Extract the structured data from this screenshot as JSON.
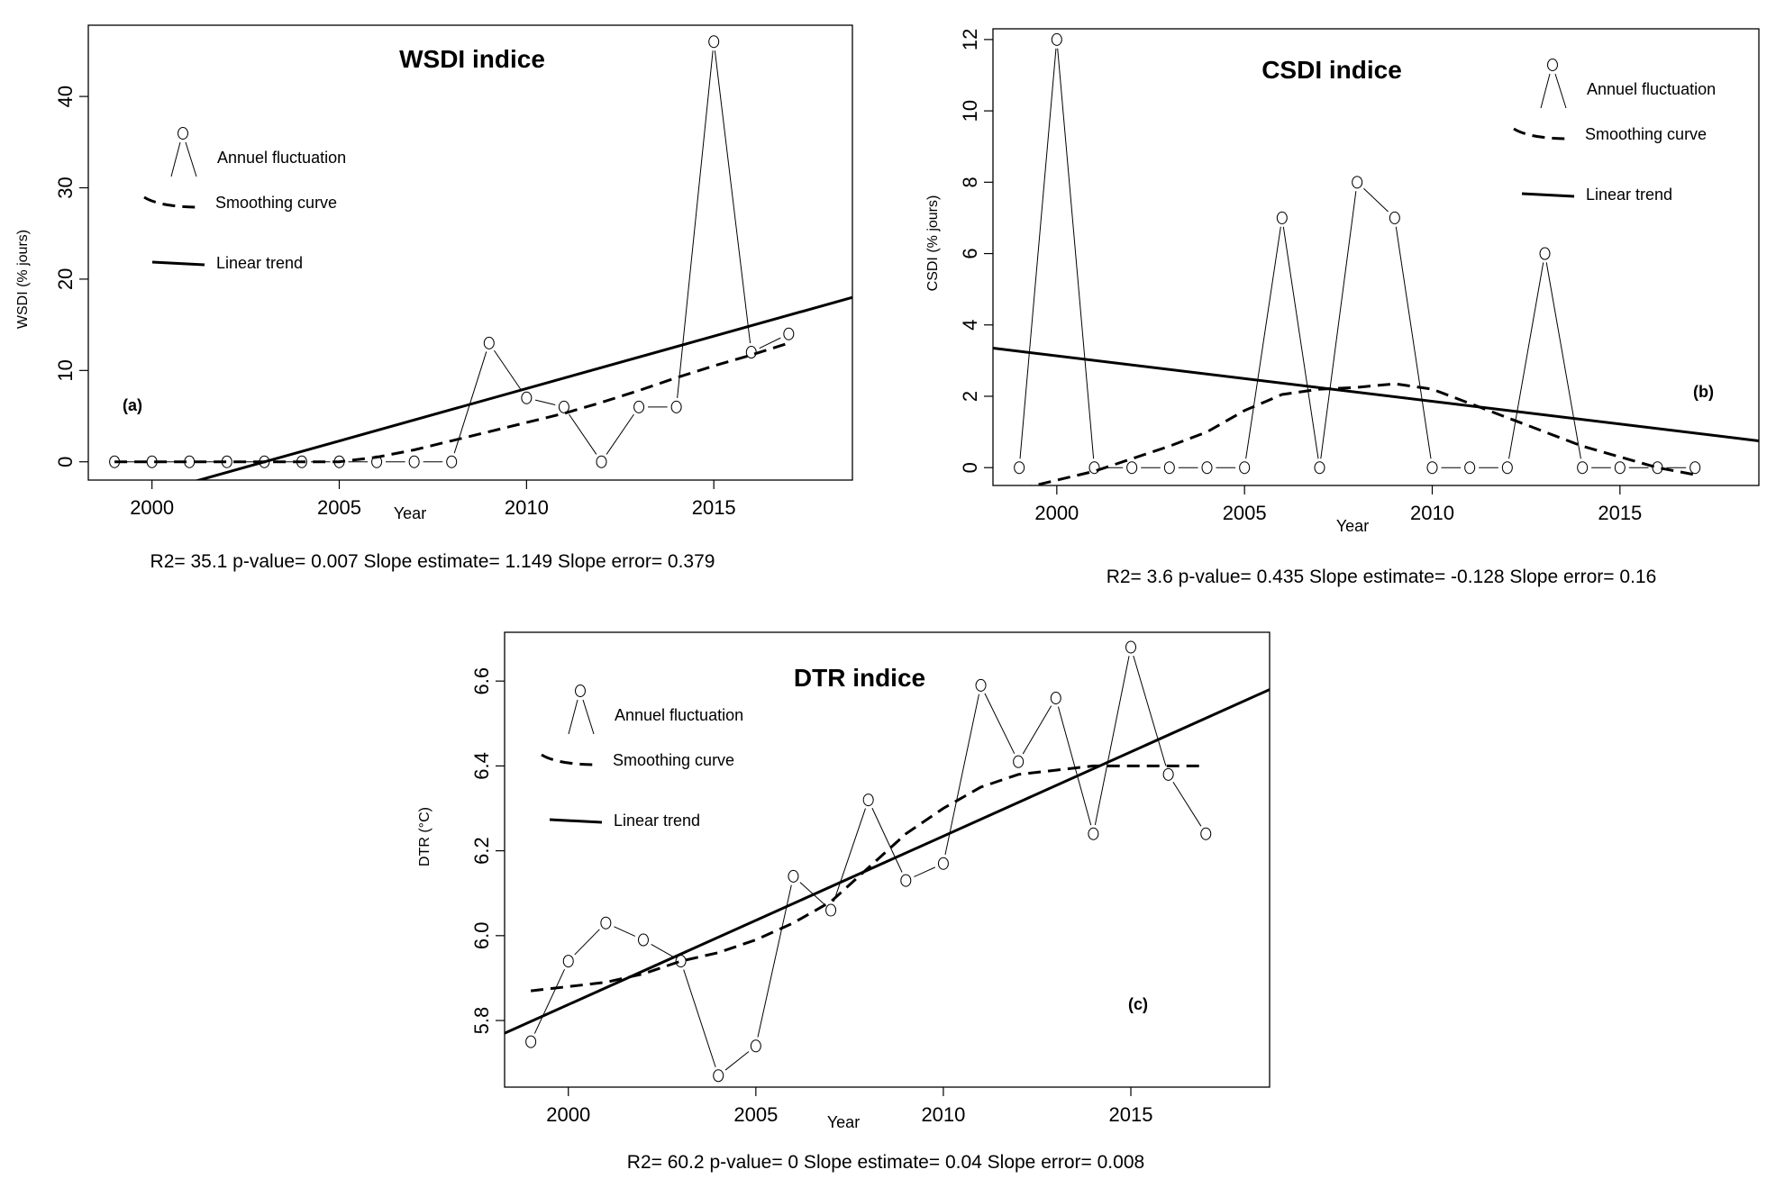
{
  "chart_data": [
    {
      "id": "a",
      "type": "line",
      "title": "WSDI indice",
      "panel_label": "(a)",
      "xlabel": "Year",
      "ylabel": "WSDI (% jours)",
      "xlim": [
        1998.3,
        2018.7
      ],
      "ylim": [
        -2,
        47.8
      ],
      "xticks": [
        2000,
        2005,
        2010,
        2015
      ],
      "yticks": [
        0,
        10,
        20,
        30,
        40
      ],
      "x": [
        1999,
        2000,
        2001,
        2002,
        2003,
        2004,
        2005,
        2006,
        2007,
        2008,
        2009,
        2010,
        2011,
        2012,
        2013,
        2014,
        2015,
        2016,
        2017
      ],
      "series": [
        {
          "name": "Annuel fluctuation",
          "values": [
            0,
            0,
            0,
            0,
            0,
            0,
            0,
            0,
            0,
            0,
            13,
            7,
            6,
            0,
            6,
            6,
            46,
            12,
            14
          ]
        },
        {
          "name": "Smoothing curve",
          "values": [
            0,
            0,
            0,
            0,
            0,
            0,
            0,
            0.5,
            1.3,
            2.3,
            3.3,
            4.3,
            5.3,
            6.5,
            7.8,
            9.2,
            10.5,
            11.7,
            13
          ]
        },
        {
          "name": "Linear trend",
          "endpoints": [
            [
              1998.3,
              -5.4
            ],
            [
              2018.7,
              18.0
            ]
          ]
        }
      ],
      "stats": "R2= 35.1  p-value= 0.007  Slope estimate= 1.149  Slope error= 0.379"
    },
    {
      "id": "b",
      "type": "line",
      "title": "CSDI indice",
      "panel_label": "(b)",
      "xlabel": "Year",
      "ylabel": "CSDI (% jours)",
      "xlim": [
        1998.3,
        2018.7
      ],
      "ylim": [
        -0.5,
        12.3
      ],
      "xticks": [
        2000,
        2005,
        2010,
        2015
      ],
      "yticks": [
        0,
        2,
        4,
        6,
        8,
        10,
        12
      ],
      "x": [
        1999,
        2000,
        2001,
        2002,
        2003,
        2004,
        2005,
        2006,
        2007,
        2008,
        2009,
        2010,
        2011,
        2012,
        2013,
        2014,
        2015,
        2016,
        2017
      ],
      "series": [
        {
          "name": "Annuel fluctuation",
          "values": [
            0,
            12,
            0,
            0,
            0,
            0,
            0,
            7,
            0,
            8,
            7,
            0,
            0,
            0,
            6,
            0,
            0,
            0,
            0
          ]
        },
        {
          "name": "Smoothing curve",
          "values": [
            -0.6,
            -0.35,
            -0.1,
            0.25,
            0.6,
            1.0,
            1.6,
            2.05,
            2.2,
            2.25,
            2.35,
            2.2,
            1.8,
            1.4,
            1.0,
            0.6,
            0.3,
            0.0,
            -0.2
          ]
        },
        {
          "name": "Linear trend",
          "endpoints": [
            [
              1998.3,
              3.35
            ],
            [
              2018.7,
              0.75
            ]
          ]
        }
      ],
      "stats": "R2= 3.6  p-value= 0.435  Slope estimate= -0.128  Slope error= 0.16"
    },
    {
      "id": "c",
      "type": "line",
      "title": "DTR indice",
      "panel_label": "(c)",
      "xlabel": "Year",
      "ylabel": "DTR (°C)",
      "xlim": [
        1998.3,
        2018.7
      ],
      "ylim": [
        5.643,
        6.715
      ],
      "xticks": [
        2000,
        2005,
        2010,
        2015
      ],
      "yticks": [
        5.8,
        6.0,
        6.2,
        6.4,
        6.6
      ],
      "ytick_labels": [
        "5.8",
        "6.0",
        "6.2",
        "6.4",
        "6.6"
      ],
      "x": [
        1999,
        2000,
        2001,
        2002,
        2003,
        2004,
        2005,
        2006,
        2007,
        2008,
        2009,
        2010,
        2011,
        2012,
        2013,
        2014,
        2015,
        2016,
        2017
      ],
      "series": [
        {
          "name": "Annuel fluctuation",
          "values": [
            5.75,
            5.94,
            6.03,
            5.99,
            5.94,
            5.67,
            5.74,
            6.14,
            6.06,
            6.32,
            6.13,
            6.17,
            6.59,
            6.41,
            6.56,
            6.24,
            6.68,
            6.38,
            6.24
          ]
        },
        {
          "name": "Smoothing curve",
          "values": [
            5.87,
            5.88,
            5.89,
            5.91,
            5.94,
            5.96,
            5.99,
            6.03,
            6.08,
            6.16,
            6.24,
            6.3,
            6.35,
            6.38,
            6.39,
            6.4,
            6.4,
            6.4,
            6.4
          ]
        },
        {
          "name": "Linear trend",
          "endpoints": [
            [
              1998.3,
              5.77
            ],
            [
              2018.7,
              6.58
            ]
          ]
        }
      ],
      "stats": "R2= 60.2  p-value= 0  Slope estimate= 0.04  Slope error= 0.008"
    }
  ]
}
